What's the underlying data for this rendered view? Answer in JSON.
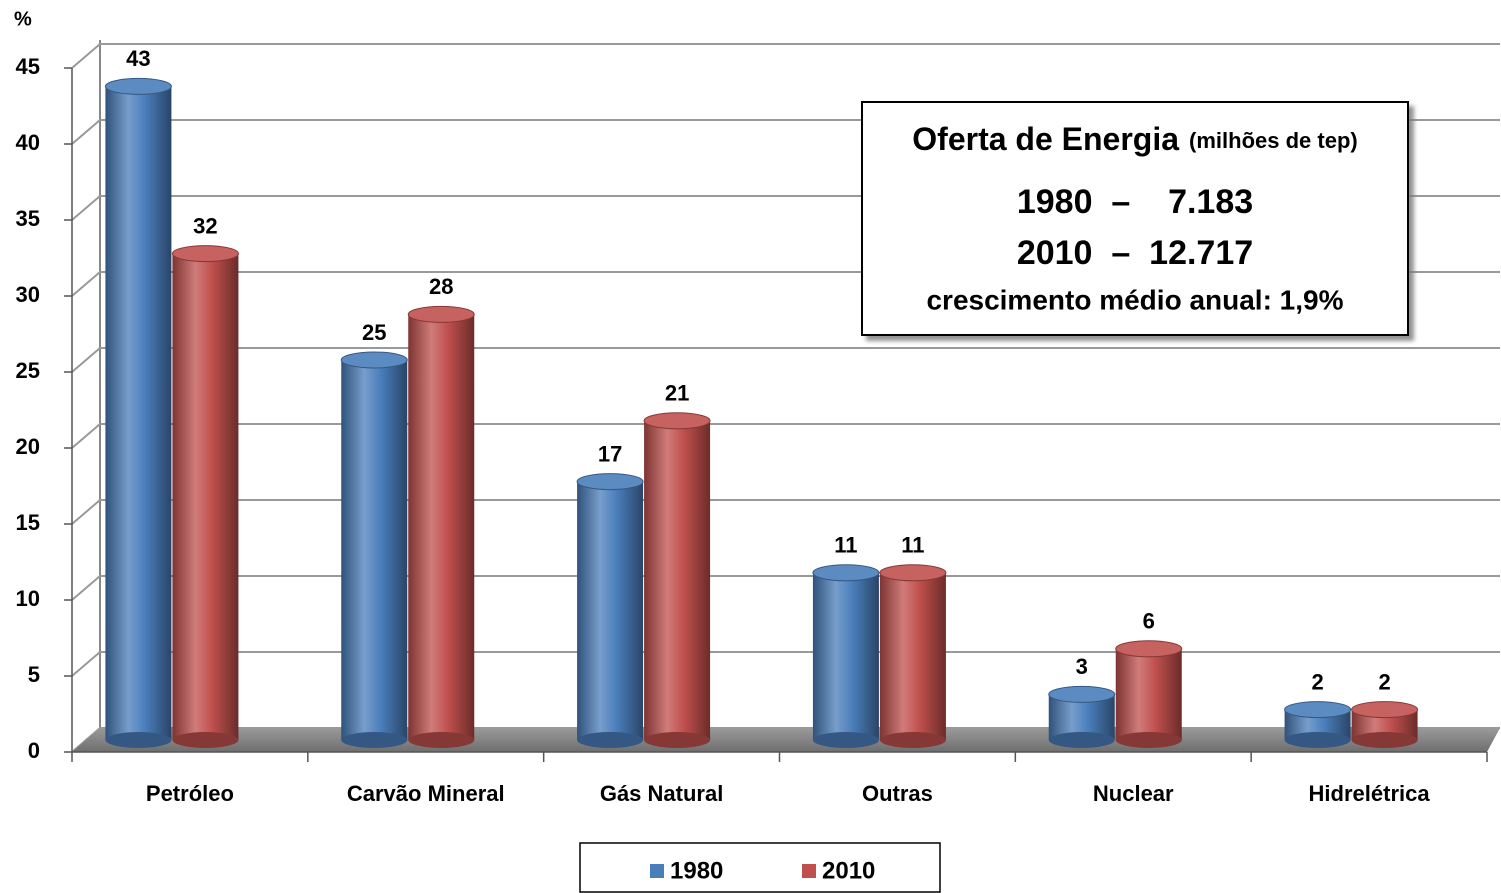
{
  "chart_data": {
    "type": "bar",
    "y_label": "%",
    "categories": [
      "Petróleo",
      "Carvão Mineral",
      "Gás Natural",
      "Outras",
      "Nuclear",
      "Hidrelétrica"
    ],
    "series": [
      {
        "name": "1980",
        "color": "#4a7ebb",
        "values": [
          43,
          25,
          17,
          11,
          3,
          2
        ]
      },
      {
        "name": "2010",
        "color": "#c0504d",
        "values": [
          32,
          28,
          21,
          11,
          6,
          2
        ]
      }
    ],
    "ylim": [
      0,
      45
    ],
    "yticks": [
      0,
      5,
      10,
      15,
      20,
      25,
      30,
      35,
      40,
      45
    ],
    "grid": true,
    "legend": "bottom",
    "annotation": {
      "title": "Oferta de Energia",
      "subtitle": "(milhões de tep)",
      "lines": [
        "1980  –    7.183",
        "2010  –  12.717",
        "crescimento médio anual: 1,9%"
      ]
    }
  }
}
